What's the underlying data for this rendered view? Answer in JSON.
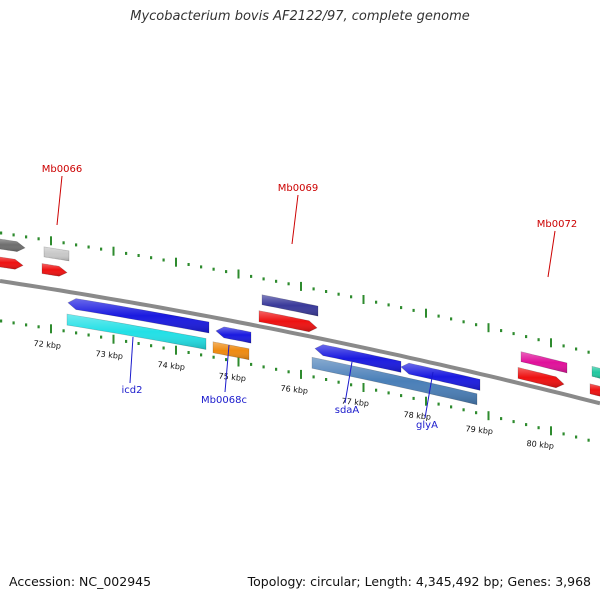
{
  "title": "Mycobacterium bovis AF2122/97, complete genome",
  "footer": {
    "accession": "Accession: NC_002945",
    "stats": "Topology: circular; Length: 4,345,492 bp; Genes: 3,968"
  },
  "colors": {
    "backbone": "#8a8a8a",
    "tick": "#2e8b2e",
    "label_forward": "#cc0000",
    "label_reverse": "#1a1acc"
  },
  "scale": {
    "unit": "kbp",
    "labels": [
      "72 kbp",
      "73 kbp",
      "74 kbp",
      "75 kbp",
      "76 kbp",
      "77 kbp",
      "78 kbp",
      "79 kbp",
      "80 kbp"
    ]
  },
  "gene_labels": {
    "forward": [
      "Mb0066",
      "Mb0069",
      "Mb0072"
    ],
    "reverse": [
      "icd2",
      "Mb0068c",
      "sdaA",
      "glyA"
    ]
  },
  "genes": [
    {
      "name": "gray-gene",
      "strand": "forward",
      "color": "#6e6e6e"
    },
    {
      "name": "light-gray-gene",
      "strand": "forward",
      "color": "#c8c8c8"
    },
    {
      "name": "red-gene-1",
      "strand": "forward",
      "color": "#ee1111"
    },
    {
      "name": "red-gene-2",
      "strand": "forward",
      "color": "#ee1111"
    },
    {
      "name": "mb0069-gene",
      "strand": "forward",
      "color": "#3a3a9a"
    },
    {
      "name": "mb0069-red-gene",
      "strand": "forward",
      "color": "#ee1111"
    },
    {
      "name": "mb0072-gene",
      "strand": "forward",
      "color": "#e0109a"
    },
    {
      "name": "mb0072-red-gene",
      "strand": "forward",
      "color": "#ee1111"
    },
    {
      "name": "teal-gene",
      "strand": "forward",
      "color": "#22c8a0"
    },
    {
      "name": "right-red-gene",
      "strand": "forward",
      "color": "#ee1111"
    },
    {
      "name": "icd2-gene",
      "strand": "reverse",
      "color": "#1a1ae0"
    },
    {
      "name": "icd2-cyan-gene",
      "strand": "reverse",
      "color": "#22e0e6"
    },
    {
      "name": "mb0068c-gene",
      "strand": "reverse",
      "color": "#1a1ae0"
    },
    {
      "name": "mb0068c-orange-gene",
      "strand": "reverse",
      "color": "#ee8a10"
    },
    {
      "name": "sdaa-gene",
      "strand": "reverse",
      "color": "#1a1ae0"
    },
    {
      "name": "glya-gene",
      "strand": "reverse",
      "color": "#1a1ae0"
    },
    {
      "name": "sdaa-glya-steel-gene",
      "strand": "reverse",
      "color": "#4a7fb8"
    }
  ]
}
